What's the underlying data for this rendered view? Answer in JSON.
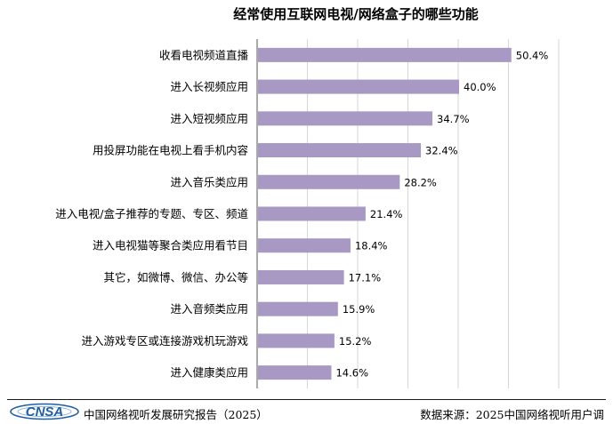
{
  "chart_data": {
    "type": "bar",
    "orientation": "horizontal",
    "title": "经常使用互联网电视/网络盒子的哪些功能",
    "categories": [
      "收看电视频道直播",
      "进入长视频应用",
      "进入短视频应用",
      "用投屏功能在电视上看手机内容",
      "进入音乐类应用",
      "进入电视/盒子推荐的专题、专区、频道",
      "进入电视猫等聚合类应用看节目",
      "其它，如微博、微信、办公等",
      "进入音频类应用",
      "进入游戏专区或连接游戏机玩游戏",
      "进入健康类应用"
    ],
    "values": [
      50.4,
      40.0,
      34.7,
      32.4,
      28.2,
      21.4,
      18.4,
      17.1,
      15.9,
      15.2,
      14.6
    ],
    "value_labels": [
      "50.4%",
      "40.0%",
      "34.7%",
      "32.4%",
      "28.2%",
      "21.4%",
      "18.4%",
      "17.1%",
      "15.9%",
      "15.2%",
      "14.6%"
    ],
    "xlim": [
      0,
      60
    ],
    "grid": true,
    "bar_color": "#a799c3",
    "grid_color": "#d6d6d6"
  },
  "footer": {
    "logo_text": "CNSA",
    "source_left": "中国网络视听发展研究报告（2025）",
    "source_right": "数据来源：2025中国网络视听用户调"
  },
  "colors": {
    "logo_blue": "#1f5fa8"
  }
}
